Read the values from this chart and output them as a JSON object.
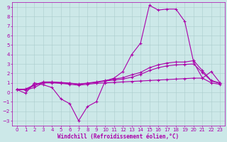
{
  "xlabel": "Windchill (Refroidissement éolien,°C)",
  "xlim": [
    -0.5,
    23.5
  ],
  "ylim": [
    -3.5,
    9.5
  ],
  "xticks": [
    0,
    1,
    2,
    3,
    4,
    5,
    6,
    7,
    8,
    9,
    10,
    11,
    12,
    13,
    14,
    15,
    16,
    17,
    18,
    19,
    20,
    21,
    22,
    23
  ],
  "yticks": [
    -3,
    -2,
    -1,
    0,
    1,
    2,
    3,
    4,
    5,
    6,
    7,
    8,
    9
  ],
  "bg_color": "#cce8e8",
  "grid_color": "#aacccc",
  "line_color": "#aa00aa",
  "line_width": 0.8,
  "marker": "+",
  "marker_size": 3.5,
  "marker_edge_width": 0.8,
  "font_size": 5.5,
  "tick_font_size": 5.0,
  "series1": [
    0.3,
    -0.1,
    1.0,
    0.8,
    0.5,
    -0.7,
    -1.2,
    -3.0,
    -1.5,
    -1.0,
    1.2,
    1.5,
    2.2,
    4.0,
    5.2,
    9.2,
    8.7,
    8.8,
    8.8,
    7.5,
    3.2,
    1.5,
    2.2,
    1.0
  ],
  "series2": [
    0.3,
    0.25,
    0.5,
    1.0,
    1.0,
    0.95,
    0.85,
    0.75,
    0.85,
    0.95,
    1.0,
    1.05,
    1.1,
    1.15,
    1.2,
    1.25,
    1.3,
    1.35,
    1.4,
    1.45,
    1.5,
    1.5,
    1.0,
    0.85
  ],
  "series3": [
    0.3,
    0.3,
    0.7,
    1.05,
    1.05,
    1.0,
    0.95,
    0.85,
    0.95,
    1.05,
    1.2,
    1.3,
    1.4,
    1.6,
    1.9,
    2.3,
    2.6,
    2.8,
    2.9,
    2.95,
    3.0,
    2.1,
    1.2,
    0.95
  ],
  "series4": [
    0.3,
    0.35,
    0.8,
    1.1,
    1.1,
    1.05,
    0.98,
    0.88,
    0.98,
    1.1,
    1.25,
    1.4,
    1.55,
    1.85,
    2.1,
    2.6,
    2.9,
    3.1,
    3.2,
    3.2,
    3.35,
    2.3,
    1.25,
    0.98
  ]
}
